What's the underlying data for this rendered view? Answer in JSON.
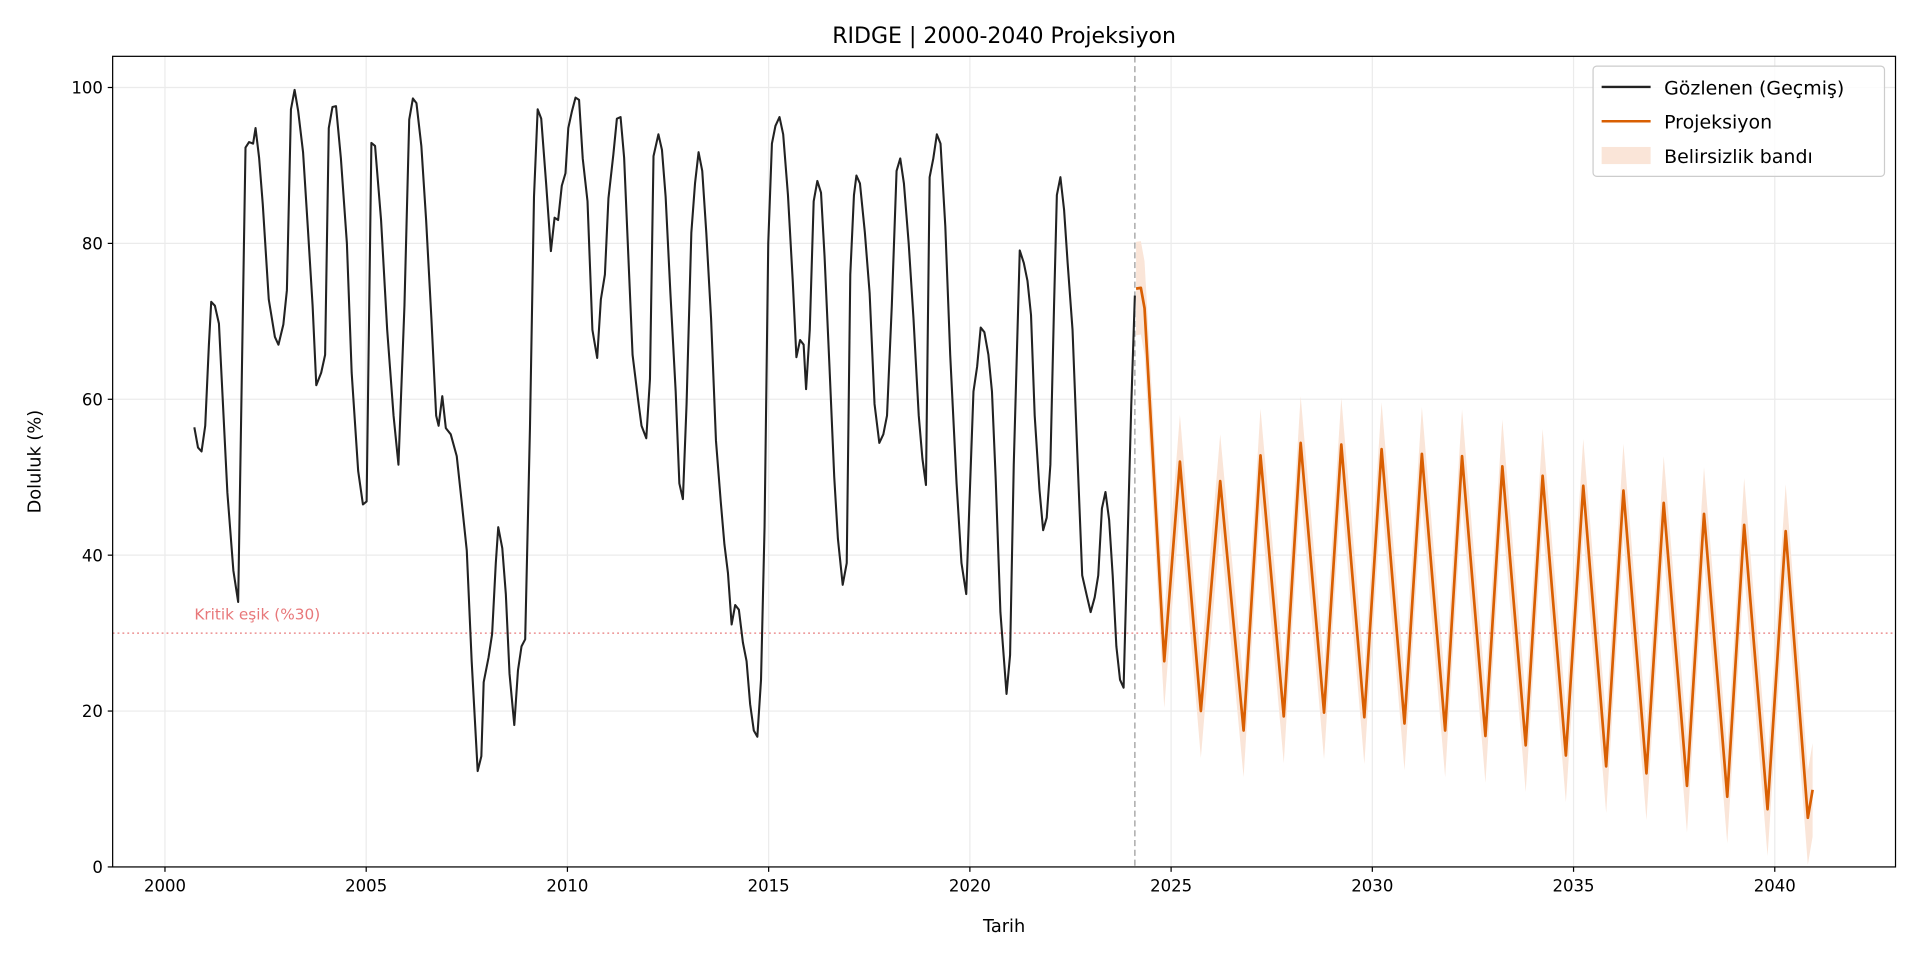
{
  "chart_data": {
    "type": "line",
    "title": "RIDGE | 2000-2040 Projeksiyon",
    "xlabel": "Tarih",
    "ylabel": "Doluluk (%)",
    "xlim": [
      1998.7,
      2043.0
    ],
    "ylim": [
      0,
      104
    ],
    "x_ticks": [
      2000,
      2005,
      2010,
      2015,
      2020,
      2025,
      2030,
      2035,
      2040
    ],
    "y_ticks": [
      0,
      20,
      40,
      60,
      80,
      100
    ],
    "grid": true,
    "legend_placement": "top-right",
    "colors": {
      "observed": "#222222",
      "projection": "#d95f02",
      "band": "#fae5d8",
      "threshold": "#e8787a",
      "divider": "#999999"
    },
    "threshold": {
      "value": 30,
      "label": "Kritik eşik (%30)"
    },
    "projection_start": 2024.1,
    "legend": [
      "Gözlenen (Geçmiş)",
      "Projeksiyon",
      "Belirsizlik bandı"
    ],
    "series": [
      {
        "name": "Gözlenen (Geçmiş)",
        "points": [
          [
            2000.73,
            56.4
          ],
          [
            2000.82,
            53.8
          ],
          [
            2000.91,
            53.3
          ],
          [
            2001.0,
            56.6
          ],
          [
            2001.09,
            67
          ],
          [
            2001.15,
            72.5
          ],
          [
            2001.24,
            72
          ],
          [
            2001.34,
            69.7
          ],
          [
            2001.55,
            48
          ],
          [
            2001.7,
            38
          ],
          [
            2001.82,
            34
          ],
          [
            2002.0,
            92.3
          ],
          [
            2002.09,
            93
          ],
          [
            2002.19,
            92.8
          ],
          [
            2002.25,
            94.8
          ],
          [
            2002.34,
            91
          ],
          [
            2002.43,
            85
          ],
          [
            2002.58,
            72.8
          ],
          [
            2002.73,
            68
          ],
          [
            2002.82,
            67
          ],
          [
            2002.94,
            69.6
          ],
          [
            2003.03,
            74
          ],
          [
            2003.13,
            97.2
          ],
          [
            2003.22,
            99.7
          ],
          [
            2003.31,
            97
          ],
          [
            2003.43,
            91.7
          ],
          [
            2003.55,
            82
          ],
          [
            2003.67,
            72
          ],
          [
            2003.76,
            61.8
          ],
          [
            2003.88,
            63.4
          ],
          [
            2003.98,
            65.7
          ],
          [
            2004.07,
            94.8
          ],
          [
            2004.16,
            97.5
          ],
          [
            2004.25,
            97.6
          ],
          [
            2004.37,
            90.9
          ],
          [
            2004.52,
            80
          ],
          [
            2004.64,
            63.4
          ],
          [
            2004.8,
            50.8
          ],
          [
            2004.92,
            46.5
          ],
          [
            2005.01,
            46.9
          ],
          [
            2005.13,
            92.9
          ],
          [
            2005.22,
            92.5
          ],
          [
            2005.37,
            83
          ],
          [
            2005.52,
            68.9
          ],
          [
            2005.68,
            57.9
          ],
          [
            2005.8,
            51.6
          ],
          [
            2005.95,
            72
          ],
          [
            2006.07,
            95.9
          ],
          [
            2006.16,
            98.6
          ],
          [
            2006.25,
            98
          ],
          [
            2006.37,
            92.5
          ],
          [
            2006.49,
            83
          ],
          [
            2006.62,
            70.4
          ],
          [
            2006.74,
            57.9
          ],
          [
            2006.8,
            56.6
          ],
          [
            2006.89,
            60.4
          ],
          [
            2006.98,
            56.3
          ],
          [
            2007.1,
            55.5
          ],
          [
            2007.25,
            52.7
          ],
          [
            2007.37,
            46.9
          ],
          [
            2007.5,
            40.6
          ],
          [
            2007.62,
            26.4
          ],
          [
            2007.77,
            12.3
          ],
          [
            2007.86,
            14.2
          ],
          [
            2007.92,
            23.7
          ],
          [
            2008.04,
            26.9
          ],
          [
            2008.13,
            29.9
          ],
          [
            2008.22,
            39
          ],
          [
            2008.28,
            43.6
          ],
          [
            2008.38,
            40.9
          ],
          [
            2008.47,
            35
          ],
          [
            2008.56,
            24.8
          ],
          [
            2008.68,
            18.2
          ],
          [
            2008.77,
            25.2
          ],
          [
            2008.86,
            28.3
          ],
          [
            2008.95,
            29.2
          ],
          [
            2009.07,
            56.3
          ],
          [
            2009.17,
            86
          ],
          [
            2009.26,
            97.2
          ],
          [
            2009.35,
            96
          ],
          [
            2009.47,
            87.7
          ],
          [
            2009.59,
            79
          ],
          [
            2009.68,
            83.3
          ],
          [
            2009.77,
            83
          ],
          [
            2009.86,
            87.4
          ],
          [
            2009.95,
            89
          ],
          [
            2010.02,
            94.8
          ],
          [
            2010.11,
            96.9
          ],
          [
            2010.2,
            98.7
          ],
          [
            2010.29,
            98.4
          ],
          [
            2010.38,
            90.9
          ],
          [
            2010.5,
            85.4
          ],
          [
            2010.62,
            68.9
          ],
          [
            2010.74,
            65.3
          ],
          [
            2010.83,
            72.8
          ],
          [
            2010.93,
            76
          ],
          [
            2011.02,
            85.8
          ],
          [
            2011.14,
            91.4
          ],
          [
            2011.23,
            96
          ],
          [
            2011.32,
            96.2
          ],
          [
            2011.41,
            91
          ],
          [
            2011.5,
            80
          ],
          [
            2011.62,
            65.7
          ],
          [
            2011.75,
            60.2
          ],
          [
            2011.84,
            56.6
          ],
          [
            2011.96,
            55
          ],
          [
            2012.05,
            62.6
          ],
          [
            2012.14,
            91.2
          ],
          [
            2012.26,
            94
          ],
          [
            2012.35,
            92
          ],
          [
            2012.44,
            86
          ],
          [
            2012.56,
            73.6
          ],
          [
            2012.69,
            61
          ],
          [
            2012.78,
            49.2
          ],
          [
            2012.87,
            47.2
          ],
          [
            2012.96,
            59.4
          ],
          [
            2013.08,
            81.4
          ],
          [
            2013.17,
            87.7
          ],
          [
            2013.26,
            91.7
          ],
          [
            2013.35,
            89.3
          ],
          [
            2013.45,
            81.4
          ],
          [
            2013.57,
            70.4
          ],
          [
            2013.69,
            54.7
          ],
          [
            2013.81,
            46.9
          ],
          [
            2013.9,
            41.4
          ],
          [
            2013.99,
            37.7
          ],
          [
            2014.08,
            31.1
          ],
          [
            2014.17,
            33.6
          ],
          [
            2014.26,
            33
          ],
          [
            2014.36,
            28.8
          ],
          [
            2014.45,
            26.4
          ],
          [
            2014.54,
            20.9
          ],
          [
            2014.63,
            17.5
          ],
          [
            2014.72,
            16.7
          ],
          [
            2014.81,
            24
          ],
          [
            2014.9,
            43.7
          ],
          [
            2014.99,
            80
          ],
          [
            2015.08,
            92.8
          ],
          [
            2015.17,
            95.1
          ],
          [
            2015.27,
            96.2
          ],
          [
            2015.36,
            94
          ],
          [
            2015.48,
            86.2
          ],
          [
            2015.6,
            75.2
          ],
          [
            2015.69,
            65.4
          ],
          [
            2015.78,
            67.6
          ],
          [
            2015.87,
            67
          ],
          [
            2015.93,
            61.3
          ],
          [
            2016.02,
            68.9
          ],
          [
            2016.12,
            85.4
          ],
          [
            2016.21,
            88
          ],
          [
            2016.3,
            86.5
          ],
          [
            2016.39,
            78.3
          ],
          [
            2016.51,
            64.2
          ],
          [
            2016.63,
            50
          ],
          [
            2016.72,
            42.1
          ],
          [
            2016.84,
            36.2
          ],
          [
            2016.94,
            39
          ],
          [
            2017.03,
            76
          ],
          [
            2017.12,
            86.2
          ],
          [
            2017.18,
            88.7
          ],
          [
            2017.27,
            87.7
          ],
          [
            2017.39,
            81.4
          ],
          [
            2017.51,
            73.6
          ],
          [
            2017.63,
            59.4
          ],
          [
            2017.75,
            54.4
          ],
          [
            2017.85,
            55.5
          ],
          [
            2017.94,
            57.9
          ],
          [
            2018.06,
            72
          ],
          [
            2018.18,
            89.3
          ],
          [
            2018.27,
            90.9
          ],
          [
            2018.36,
            87.7
          ],
          [
            2018.48,
            80
          ],
          [
            2018.6,
            70.4
          ],
          [
            2018.73,
            57.9
          ],
          [
            2018.82,
            52.4
          ],
          [
            2018.91,
            49
          ],
          [
            2019.0,
            88.5
          ],
          [
            2019.09,
            90.9
          ],
          [
            2019.18,
            94
          ],
          [
            2019.27,
            92.8
          ],
          [
            2019.39,
            82.2
          ],
          [
            2019.51,
            65.7
          ],
          [
            2019.67,
            49.2
          ],
          [
            2019.79,
            39
          ],
          [
            2019.91,
            35
          ],
          [
            2020.0,
            48.4
          ],
          [
            2020.09,
            61
          ],
          [
            2020.18,
            64.2
          ],
          [
            2020.27,
            69.2
          ],
          [
            2020.36,
            68.6
          ],
          [
            2020.46,
            65.7
          ],
          [
            2020.55,
            61
          ],
          [
            2020.64,
            50
          ],
          [
            2020.76,
            32.7
          ],
          [
            2020.91,
            22.2
          ],
          [
            2021.0,
            27.2
          ],
          [
            2021.09,
            51.6
          ],
          [
            2021.24,
            79.1
          ],
          [
            2021.34,
            77.5
          ],
          [
            2021.43,
            75.2
          ],
          [
            2021.52,
            70.8
          ],
          [
            2021.61,
            57.9
          ],
          [
            2021.73,
            48.4
          ],
          [
            2021.82,
            43.2
          ],
          [
            2021.91,
            44.8
          ],
          [
            2022.0,
            51.6
          ],
          [
            2022.09,
            72
          ],
          [
            2022.16,
            86.2
          ],
          [
            2022.25,
            88.5
          ],
          [
            2022.34,
            84.3
          ],
          [
            2022.43,
            77.5
          ],
          [
            2022.55,
            68.9
          ],
          [
            2022.67,
            53.1
          ],
          [
            2022.79,
            37.4
          ],
          [
            2022.91,
            34.7
          ],
          [
            2023.0,
            32.7
          ],
          [
            2023.1,
            34.6
          ],
          [
            2023.19,
            37.4
          ],
          [
            2023.28,
            46
          ],
          [
            2023.37,
            48.1
          ],
          [
            2023.46,
            44.5
          ],
          [
            2023.55,
            37.4
          ],
          [
            2023.64,
            28.3
          ],
          [
            2023.73,
            24
          ],
          [
            2023.82,
            23
          ],
          [
            2023.92,
            42.1
          ],
          [
            2024.01,
            59.4
          ],
          [
            2024.1,
            73.3
          ]
        ]
      },
      {
        "name": "Projeksiyon",
        "points": [
          [
            2024.13,
            74.2
          ],
          [
            2024.25,
            74.3
          ],
          [
            2024.34,
            71.7
          ],
          [
            2024.83,
            26.4
          ],
          [
            2025.22,
            52
          ],
          [
            2025.74,
            20
          ],
          [
            2026.22,
            49.5
          ],
          [
            2026.8,
            17.5
          ],
          [
            2027.22,
            52.8
          ],
          [
            2027.8,
            19.3
          ],
          [
            2028.22,
            54.4
          ],
          [
            2028.8,
            19.8
          ],
          [
            2029.23,
            54.2
          ],
          [
            2029.8,
            19.2
          ],
          [
            2030.23,
            53.6
          ],
          [
            2030.8,
            18.4
          ],
          [
            2031.23,
            53
          ],
          [
            2031.81,
            17.5
          ],
          [
            2032.23,
            52.7
          ],
          [
            2032.81,
            16.8
          ],
          [
            2033.23,
            51.4
          ],
          [
            2033.81,
            15.6
          ],
          [
            2034.23,
            50.2
          ],
          [
            2034.81,
            14.3
          ],
          [
            2035.24,
            48.9
          ],
          [
            2035.81,
            12.9
          ],
          [
            2036.24,
            48.3
          ],
          [
            2036.81,
            12
          ],
          [
            2037.24,
            46.7
          ],
          [
            2037.82,
            10.4
          ],
          [
            2038.24,
            45.3
          ],
          [
            2038.82,
            9
          ],
          [
            2039.24,
            43.9
          ],
          [
            2039.82,
            7.4
          ],
          [
            2040.27,
            43.1
          ],
          [
            2040.82,
            6.3
          ],
          [
            2040.94,
            9.9
          ]
        ]
      }
    ],
    "band": {
      "name": "Belirsizlik bandı",
      "half_width": 6
    }
  }
}
